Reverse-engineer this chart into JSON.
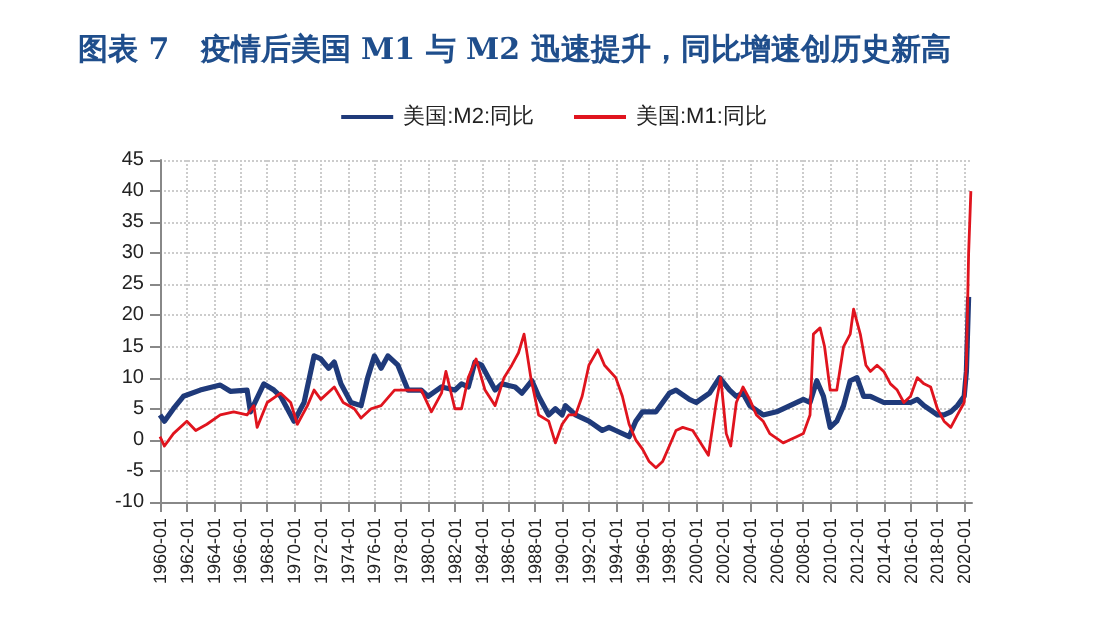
{
  "chart_data": {
    "type": "line",
    "title": "图表 7   疫情后美国 M1 与 M2 迅速提升，同比增速创历史新高",
    "xlim": [
      "1960-01",
      "2020-08"
    ],
    "xticks": [
      "1960-01",
      "1962-01",
      "1964-01",
      "1966-01",
      "1968-01",
      "1970-01",
      "1972-01",
      "1974-01",
      "1976-01",
      "1978-01",
      "1980-01",
      "1982-01",
      "1984-01",
      "1986-01",
      "1988-01",
      "1990-01",
      "1992-01",
      "1994-01",
      "1996-01",
      "1998-01",
      "2000-01",
      "2002-01",
      "2004-01",
      "2006-01",
      "2008-01",
      "2010-01",
      "2012-01",
      "2014-01",
      "2016-01",
      "2018-01",
      "2020-01"
    ],
    "ylim": [
      -10,
      45
    ],
    "yticks": [
      -10,
      -5,
      0,
      5,
      10,
      15,
      20,
      25,
      30,
      35,
      40,
      45
    ],
    "grid": true,
    "legend": "top",
    "marker": "none",
    "line_style": "solid",
    "series": [
      {
        "name": "美国:M2:同比",
        "color": "#1f3a7a",
        "x": [
          "1960-01",
          "1960-05",
          "1961-01",
          "1961-10",
          "1963-01",
          "1964-07",
          "1965-04",
          "1966-07",
          "1966-10",
          "1967-10",
          "1968-07",
          "1969-01",
          "1970-01",
          "1970-10",
          "1971-07",
          "1972-01",
          "1972-08",
          "1973-01",
          "1973-07",
          "1974-04",
          "1975-01",
          "1975-07",
          "1976-01",
          "1976-07",
          "1977-01",
          "1977-10",
          "1978-07",
          "1979-07",
          "1980-01",
          "1981-01",
          "1982-01",
          "1982-07",
          "1983-01",
          "1983-07",
          "1984-01",
          "1985-01",
          "1985-07",
          "1986-07",
          "1987-01",
          "1987-10",
          "1988-04",
          "1989-01",
          "1989-07",
          "1990-01",
          "1990-04",
          "1991-01",
          "1992-01",
          "1993-01",
          "1993-07",
          "1994-01",
          "1995-01",
          "1995-07",
          "1996-01",
          "1997-01",
          "1998-01",
          "1998-07",
          "1999-07",
          "2000-01",
          "2001-01",
          "2001-10",
          "2002-07",
          "2003-01",
          "2003-07",
          "2004-01",
          "2005-01",
          "2006-01",
          "2007-01",
          "2008-01",
          "2008-07",
          "2009-01",
          "2009-07",
          "2010-01",
          "2010-07",
          "2011-01",
          "2011-07",
          "2012-01",
          "2012-07",
          "2013-01",
          "2014-01",
          "2015-01",
          "2016-01",
          "2016-07",
          "2017-01",
          "2018-01",
          "2018-07",
          "2019-01",
          "2019-07",
          "2020-01",
          "2020-03",
          "2020-05"
        ],
        "values": [
          4,
          3,
          5,
          7,
          8,
          8.8,
          7.8,
          8,
          4.5,
          9,
          8,
          7,
          3,
          6,
          13.5,
          13,
          11.5,
          12.5,
          9,
          6,
          5.5,
          10,
          13.5,
          11.5,
          13.5,
          12,
          8,
          8,
          7,
          8.5,
          8,
          9,
          8.5,
          12.5,
          12,
          8,
          9,
          8.5,
          7.5,
          9.5,
          7,
          4,
          5,
          4,
          5.5,
          4,
          3,
          1.5,
          2,
          1.5,
          0.5,
          3,
          4.5,
          4.5,
          7.5,
          8,
          6.5,
          6,
          7.5,
          10,
          8,
          7,
          7.5,
          5.5,
          4,
          4.5,
          5.5,
          6.5,
          6,
          9.5,
          7,
          2,
          3,
          5.5,
          9.5,
          10,
          7,
          7,
          6,
          6,
          6,
          6.5,
          5.5,
          4,
          4,
          4.5,
          5.5,
          7,
          11,
          23
        ]
      },
      {
        "name": "美国:M1:同比",
        "color": "#e0141e",
        "x": [
          "1960-01",
          "1960-05",
          "1961-01",
          "1962-01",
          "1962-09",
          "1963-07",
          "1964-07",
          "1965-07",
          "1966-07",
          "1967-01",
          "1967-04",
          "1968-01",
          "1969-01",
          "1969-10",
          "1970-04",
          "1971-01",
          "1971-07",
          "1972-01",
          "1973-01",
          "1973-09",
          "1974-07",
          "1975-01",
          "1975-10",
          "1976-07",
          "1977-07",
          "1978-07",
          "1979-07",
          "1980-04",
          "1981-01",
          "1981-05",
          "1982-01",
          "1982-07",
          "1983-01",
          "1983-08",
          "1984-04",
          "1985-01",
          "1985-09",
          "1986-04",
          "1986-10",
          "1987-03",
          "1987-09",
          "1988-04",
          "1989-01",
          "1989-07",
          "1990-01",
          "1990-07",
          "1991-01",
          "1991-07",
          "1992-01",
          "1992-09",
          "1993-03",
          "1994-01",
          "1994-07",
          "1995-01",
          "1995-07",
          "1996-01",
          "1996-07",
          "1997-01",
          "1997-07",
          "1998-01",
          "1998-07",
          "1999-01",
          "1999-10",
          "2000-12",
          "2001-07",
          "2001-11",
          "2002-04",
          "2002-08",
          "2003-01",
          "2003-07",
          "2004-01",
          "2004-07",
          "2005-01",
          "2005-07",
          "2006-07",
          "2007-01",
          "2007-07",
          "2008-01",
          "2008-07",
          "2008-10",
          "2009-04",
          "2009-08",
          "2010-01",
          "2010-07",
          "2011-01",
          "2011-07",
          "2011-10",
          "2012-04",
          "2012-09",
          "2013-01",
          "2013-07",
          "2014-01",
          "2014-07",
          "2015-01",
          "2015-07",
          "2016-01",
          "2016-07",
          "2017-01",
          "2017-07",
          "2018-01",
          "2018-07",
          "2019-01",
          "2019-07",
          "2020-01",
          "2020-03",
          "2020-05",
          "2020-07"
        ],
        "values": [
          0.5,
          -1,
          1,
          3,
          1.5,
          2.5,
          4,
          4.5,
          4,
          5.5,
          2,
          6,
          7.5,
          6,
          2.5,
          5.5,
          8,
          6.5,
          8.5,
          6,
          5,
          3.5,
          5,
          5.5,
          8,
          8,
          8,
          4.5,
          7.5,
          11,
          5,
          5,
          10,
          13,
          8,
          5.5,
          10,
          12,
          14,
          17,
          10,
          4,
          3,
          -0.5,
          2.5,
          4,
          4,
          7,
          12,
          14.5,
          12,
          10,
          7,
          2.5,
          0,
          -1.5,
          -3.5,
          -4.5,
          -3.5,
          -1,
          1.5,
          2,
          1.5,
          -2.5,
          6,
          10,
          1,
          -1,
          6,
          8.5,
          6.5,
          4,
          3,
          1,
          -0.5,
          0,
          0.5,
          1,
          4,
          17,
          18,
          15,
          8,
          8,
          15,
          17,
          21,
          17,
          12,
          11,
          12,
          11,
          9,
          8,
          6,
          7,
          10,
          9,
          8.5,
          5,
          3,
          2,
          4,
          6,
          12,
          30,
          40
        ]
      }
    ]
  }
}
